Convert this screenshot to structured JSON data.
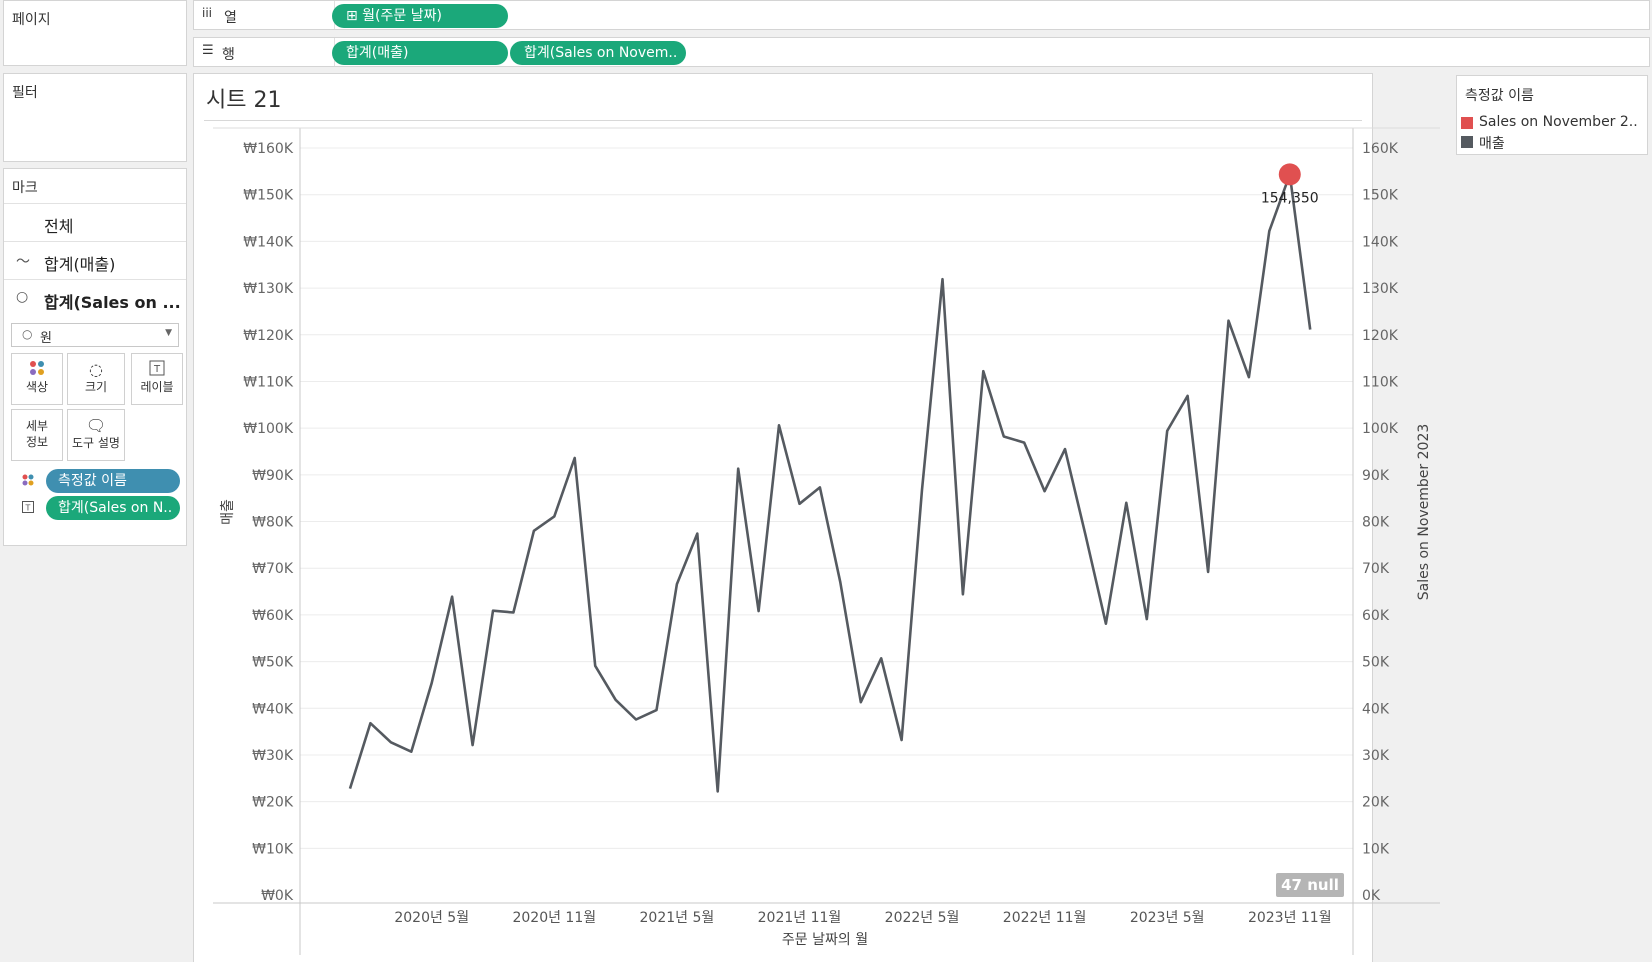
{
  "left": {
    "pages_title": "페이지",
    "filters_title": "필터",
    "marks_title": "마크",
    "marks_rows": [
      {
        "icon": "",
        "label": "전체"
      },
      {
        "icon": "line-mark-icon",
        "label": "합계(매출)"
      },
      {
        "icon": "circle-mark-icon",
        "label": "합계(Sales on ..."
      }
    ],
    "mark_type": "원",
    "buttons": [
      "색상",
      "크기",
      "레이블",
      "세부\n정보",
      "도구 설명"
    ],
    "fields": [
      {
        "icon": "color-icon",
        "label": "측정값 이름",
        "color": "#3f8fb0"
      },
      {
        "icon": "label-icon",
        "label": "합계(Sales on N..",
        "color": "#1ba87a"
      }
    ]
  },
  "shelves": {
    "columns_label": "열",
    "columns_pill": "⊞ 월(주문 날짜)",
    "rows_label": "행",
    "rows_pills": [
      "합계(매출)",
      "합계(Sales on Novem.."
    ]
  },
  "sheet": {
    "title": "시트 21",
    "null_badge": "47 null",
    "point_label": "154,350"
  },
  "legend": {
    "title": "측정값 이름",
    "items": [
      {
        "label": "Sales on November 2..",
        "color": "#e05050"
      },
      {
        "label": "매출",
        "color": "#555a60"
      }
    ]
  },
  "chart_data": {
    "type": "line",
    "xlabel": "주문 날짜의 월",
    "ylabel": "매출",
    "y2label": "Sales on November 2023",
    "ylim": [
      0,
      160000
    ],
    "y2lim": [
      0,
      160000
    ],
    "left_ticks": [
      "₩0K",
      "₩10K",
      "₩20K",
      "₩30K",
      "₩40K",
      "₩50K",
      "₩60K",
      "₩70K",
      "₩80K",
      "₩90K",
      "₩100K",
      "₩110K",
      "₩120K",
      "₩130K",
      "₩140K",
      "₩150K",
      "₩160K"
    ],
    "right_ticks": [
      "0K",
      "10K",
      "20K",
      "30K",
      "40K",
      "50K",
      "60K",
      "70K",
      "80K",
      "90K",
      "100K",
      "110K",
      "120K",
      "130K",
      "140K",
      "150K",
      "160K"
    ],
    "x_ticks": [
      {
        "label": "2020년 5월",
        "index": 4
      },
      {
        "label": "2020년 11월",
        "index": 10
      },
      {
        "label": "2021년 5월",
        "index": 16
      },
      {
        "label": "2021년 11월",
        "index": 22
      },
      {
        "label": "2022년 5월",
        "index": 28
      },
      {
        "label": "2022년 11월",
        "index": 34
      },
      {
        "label": "2023년 5월",
        "index": 40
      },
      {
        "label": "2023년 11월",
        "index": 46
      }
    ],
    "series": [
      {
        "name": "매출",
        "color": "#555a60",
        "values": [
          22800,
          36800,
          32700,
          30700,
          45400,
          63900,
          32100,
          60900,
          60500,
          78000,
          81100,
          93600,
          49100,
          41800,
          37600,
          39600,
          66600,
          77400,
          22200,
          91300,
          60800,
          100600,
          83800,
          87300,
          67000,
          41300,
          50700,
          33200,
          86800,
          131900,
          64400,
          112200,
          98200,
          96900,
          86500,
          95500,
          77100,
          58100,
          84000,
          59100,
          99400,
          106900,
          69200,
          123000,
          110900,
          142200,
          154350,
          121100
        ]
      },
      {
        "name": "Sales on November 2..",
        "color": "#e05050",
        "points": [
          {
            "index": 46,
            "value": 154350
          }
        ]
      }
    ]
  }
}
